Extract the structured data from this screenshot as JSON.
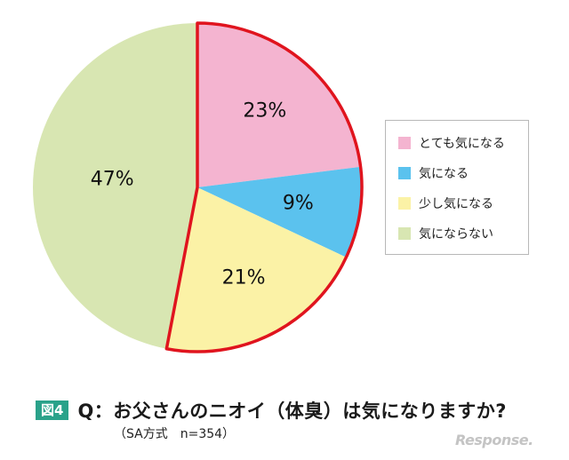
{
  "chart_data": {
    "type": "pie",
    "start_angle_deg": 0,
    "direction": "clockwise",
    "labels": [
      "とても気になる",
      "気になる",
      "少し気になる",
      "気にならない"
    ],
    "values": [
      23,
      9,
      21,
      47
    ],
    "value_labels": [
      "23%",
      "9%",
      "21%",
      "47%"
    ],
    "colors": [
      "#f4b4d0",
      "#5bc2ee",
      "#fbf2a6",
      "#d8e6b2"
    ],
    "highlight_outline_color": "#e0141e",
    "highlighted_slices": [
      0,
      1,
      2
    ],
    "legend_position": "right"
  },
  "caption": {
    "badge": "図4",
    "question": "Q：お父さんのニオイ（体臭）は気になりますか?",
    "note": "（SA方式　n=354）"
  },
  "watermark": "Response."
}
